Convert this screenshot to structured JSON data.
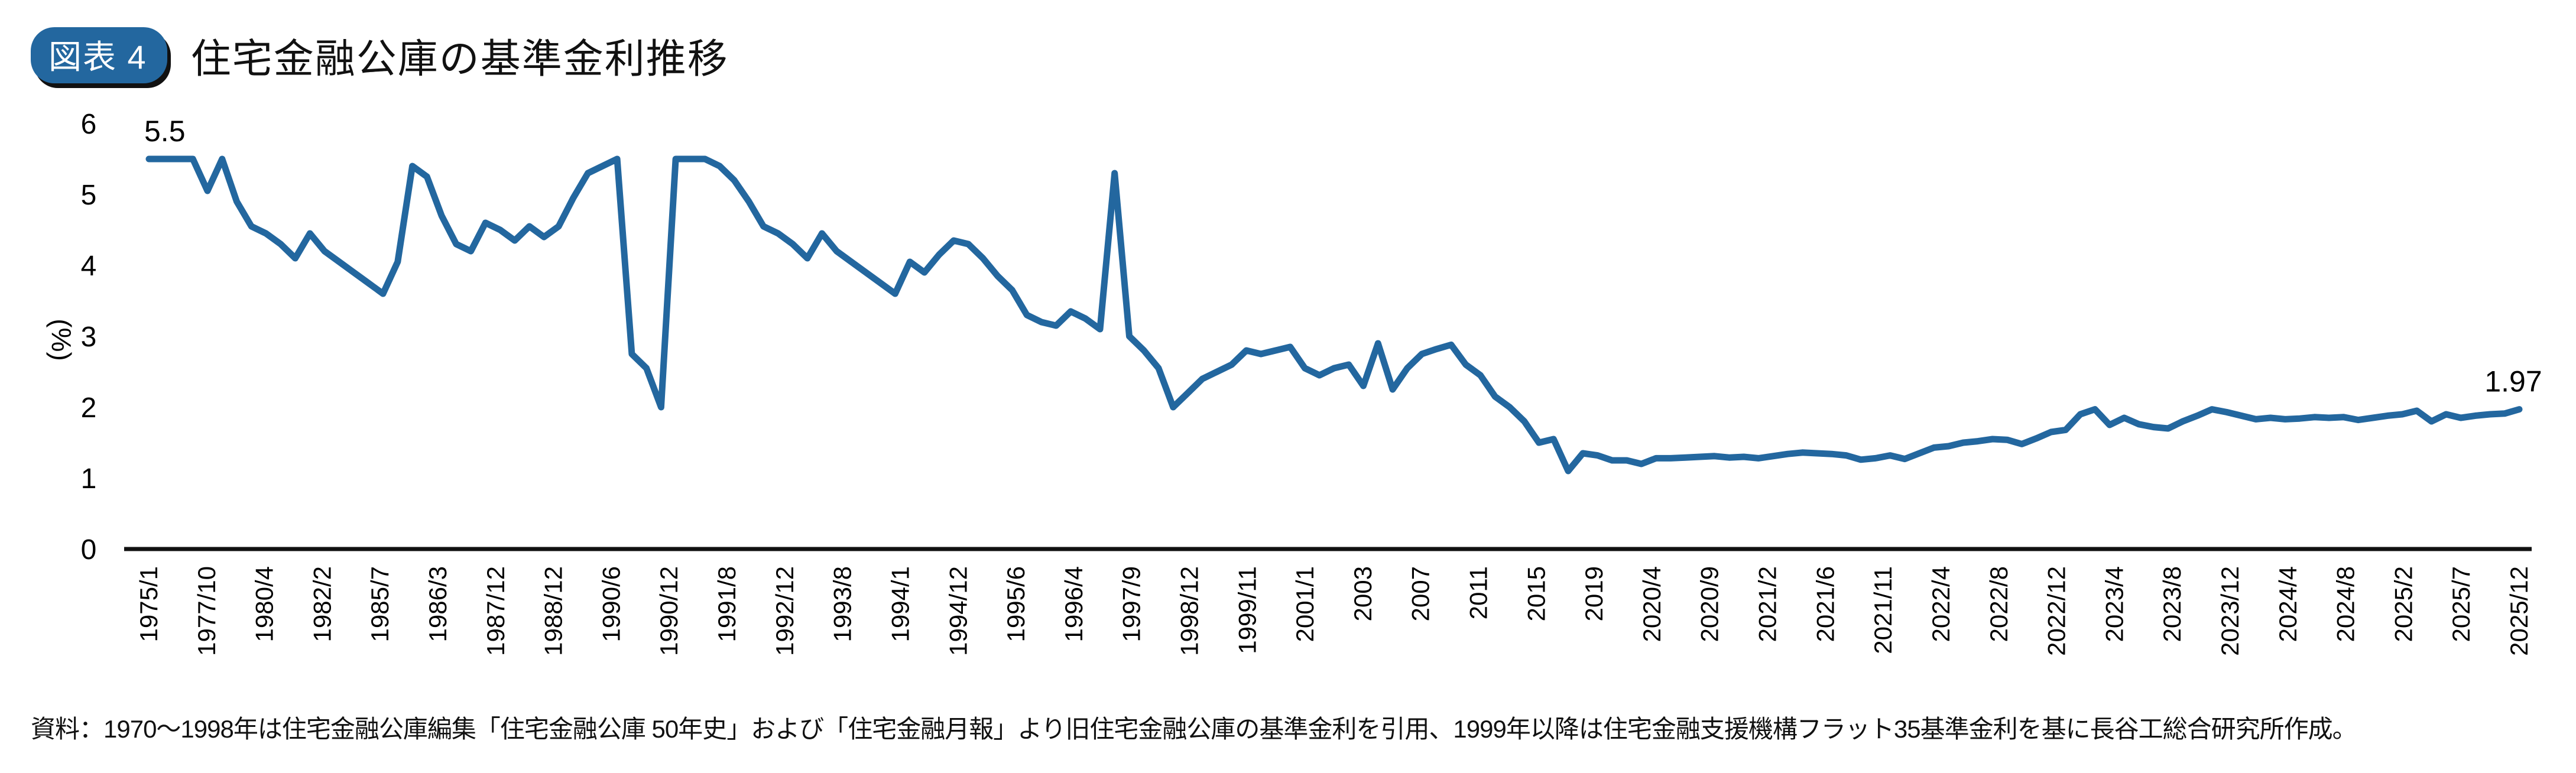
{
  "header": {
    "badge": "図表 4",
    "title": "住宅金融公庫の基準金利推移"
  },
  "chart_data": {
    "type": "line",
    "title": "住宅金融公庫の基準金利推移",
    "ylabel": "(%)",
    "xlabel": "",
    "ylim": [
      0,
      6
    ],
    "yticks": [
      "0",
      "1",
      "2",
      "3",
      "4",
      "5",
      "6"
    ],
    "grid": false,
    "line_color": "#23679f",
    "xtick_labels": [
      "1975/1",
      "1977/10",
      "1980/4",
      "1982/2",
      "1985/7",
      "1986/3",
      "1987/12",
      "1988/12",
      "1990/6",
      "1990/12",
      "1991/8",
      "1992/12",
      "1993/8",
      "1994/1",
      "1994/12",
      "1995/6",
      "1996/4",
      "1997/9",
      "1998/12",
      "1999/11",
      "2001/1",
      "2003",
      "2007",
      "2011",
      "2015",
      "2019",
      "2020/4",
      "2020/9",
      "2021/2",
      "2021/6",
      "2021/11",
      "2022/4",
      "2022/8",
      "2022/12",
      "2023/4",
      "2023/8",
      "2023/12",
      "2024/4",
      "2024/8",
      "2025/2",
      "2025/7",
      "2025/12"
    ],
    "series": [
      {
        "name": "基準金利",
        "values": [
          5.5,
          5.5,
          5.5,
          5.5,
          5.05,
          5.5,
          4.9,
          4.55,
          4.45,
          4.3,
          4.1,
          4.45,
          4.2,
          4.05,
          3.9,
          3.75,
          3.6,
          4.05,
          5.4,
          5.25,
          4.7,
          4.3,
          4.2,
          4.6,
          4.5,
          4.35,
          4.55,
          4.4,
          4.55,
          4.95,
          5.3,
          5.4,
          5.5,
          2.75,
          2.55,
          2.0,
          5.5,
          5.5,
          5.5,
          5.4,
          5.2,
          4.9,
          4.55,
          4.45,
          4.3,
          4.1,
          4.45,
          4.2,
          4.05,
          3.9,
          3.75,
          3.6,
          4.05,
          3.9,
          4.15,
          4.35,
          4.3,
          4.1,
          3.85,
          3.65,
          3.3,
          3.2,
          3.15,
          3.35,
          3.25,
          3.1,
          5.3,
          3.0,
          2.8,
          2.55,
          2.0,
          2.2,
          2.4,
          2.5,
          2.6,
          2.8,
          2.75,
          2.8,
          2.85,
          2.55,
          2.45,
          2.55,
          2.6,
          2.3,
          2.9,
          2.25,
          2.55,
          2.75,
          2.82,
          2.88,
          2.6,
          2.45,
          2.15,
          2.0,
          1.8,
          1.5,
          1.55,
          1.1,
          1.35,
          1.32,
          1.25,
          1.25,
          1.2,
          1.28,
          1.28,
          1.29,
          1.3,
          1.31,
          1.29,
          1.3,
          1.28,
          1.31,
          1.34,
          1.36,
          1.35,
          1.34,
          1.32,
          1.26,
          1.28,
          1.32,
          1.27,
          1.35,
          1.43,
          1.45,
          1.5,
          1.52,
          1.55,
          1.54,
          1.48,
          1.56,
          1.65,
          1.68,
          1.9,
          1.97,
          1.75,
          1.85,
          1.76,
          1.72,
          1.7,
          1.8,
          1.88,
          1.97,
          1.93,
          1.88,
          1.83,
          1.85,
          1.83,
          1.84,
          1.86,
          1.85,
          1.86,
          1.82,
          1.85,
          1.88,
          1.9,
          1.95,
          1.8,
          1.9,
          1.85,
          1.88,
          1.9,
          1.91,
          1.97
        ]
      }
    ],
    "annotations": [
      {
        "text": "5.5",
        "point": "first"
      },
      {
        "text": "1.97",
        "point": "last"
      }
    ]
  },
  "footer": {
    "source": "資料：1970～1998年は住宅金融公庫編集「住宅金融公庫 50年史」および「住宅金融月報」より旧住宅金融公庫の基準金利を引用、1999年以降は住宅金融支援機構フラット35基準金利を基に長谷工総合研究所作成。"
  }
}
